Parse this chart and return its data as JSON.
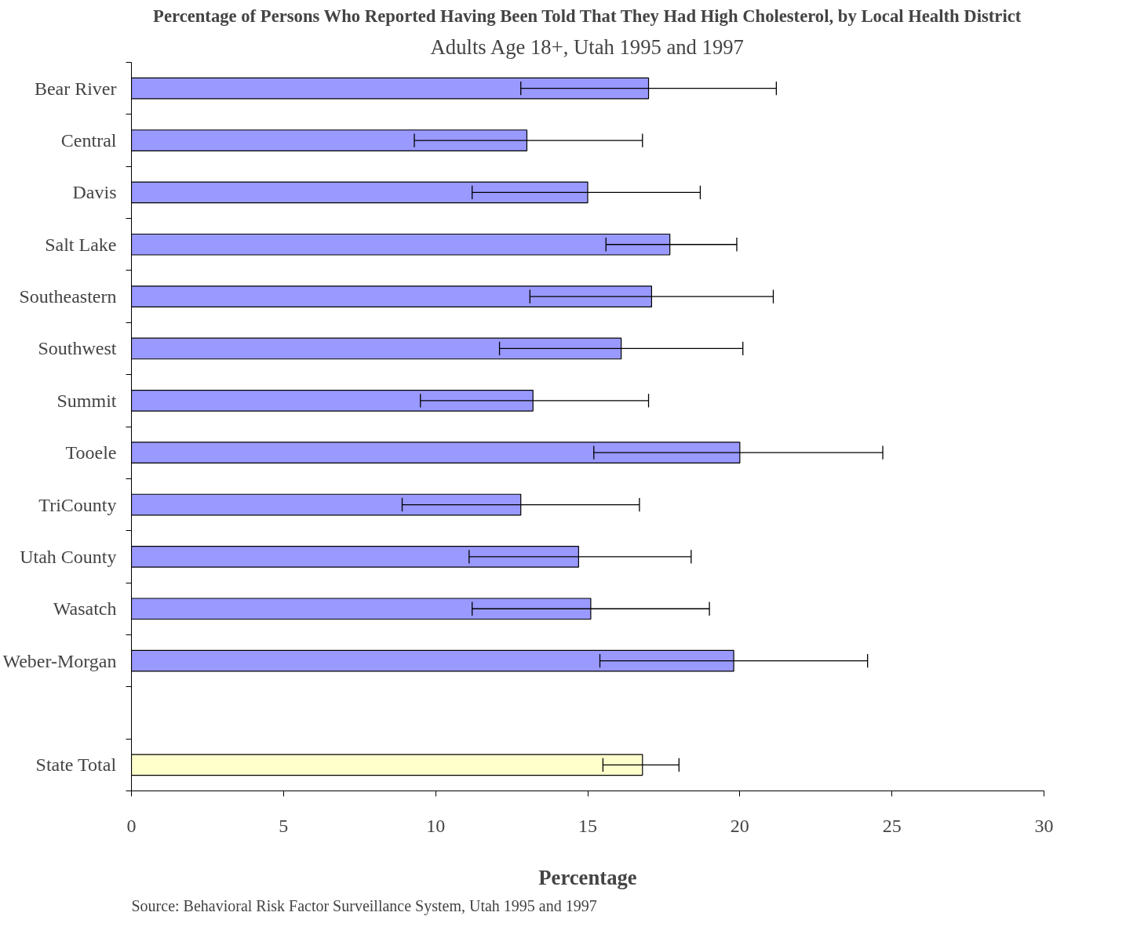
{
  "chart_data": {
    "type": "bar",
    "orientation": "horizontal",
    "title": "Percentage of Persons Who Reported Having Been Told That They Had High Cholesterol, by Local Health District",
    "subtitle": "Adults Age 18+, Utah 1995 and 1997",
    "xlabel": "Percentage",
    "categories": [
      "Bear River",
      "Central",
      "Davis",
      "Salt Lake",
      "Southeastern",
      "Southwest",
      "Summit",
      "Tooele",
      "TriCounty",
      "Utah County",
      "Wasatch",
      "Weber-Morgan",
      null,
      "State Total"
    ],
    "values": [
      17.0,
      13.0,
      15.0,
      17.7,
      17.1,
      16.1,
      13.2,
      20.0,
      12.8,
      14.7,
      15.1,
      19.8,
      null,
      16.8
    ],
    "errors": [
      [
        12.8,
        21.2
      ],
      [
        9.3,
        16.8
      ],
      [
        11.2,
        18.7
      ],
      [
        15.6,
        19.9
      ],
      [
        13.1,
        21.1
      ],
      [
        12.1,
        20.1
      ],
      [
        9.5,
        17.0
      ],
      [
        15.2,
        24.7
      ],
      [
        8.9,
        16.7
      ],
      [
        11.1,
        18.4
      ],
      [
        11.2,
        19.0
      ],
      [
        15.4,
        24.2
      ],
      null,
      [
        15.5,
        18.0
      ]
    ],
    "colors": [
      "#9999ff",
      "#9999ff",
      "#9999ff",
      "#9999ff",
      "#9999ff",
      "#9999ff",
      "#9999ff",
      "#9999ff",
      "#9999ff",
      "#9999ff",
      "#9999ff",
      "#9999ff",
      "#9999ff",
      "#ffffcc"
    ],
    "xlim": [
      0,
      30
    ],
    "xticks": [
      0,
      5,
      10,
      15,
      20,
      25,
      30
    ],
    "grid": false,
    "annotations": [
      "Source: Behavioral Risk Factor Surveillance System, Utah 1995 and 1997"
    ]
  }
}
